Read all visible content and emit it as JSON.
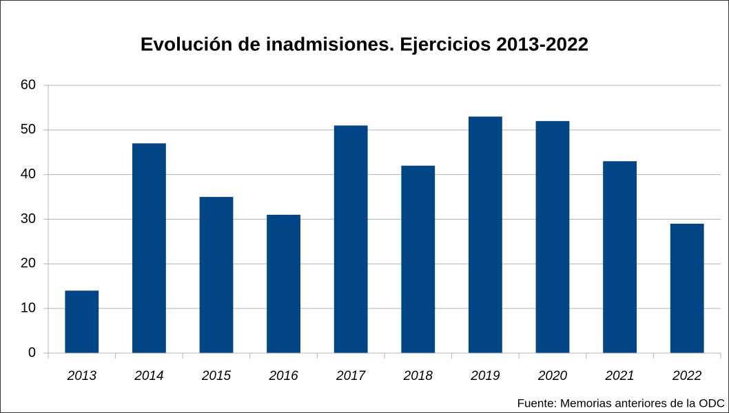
{
  "chart_data": {
    "type": "bar",
    "title": "Evolución de inadmisiones. Ejercicios 2013-2022",
    "source": "Fuente: Memorias anteriores de la ODC",
    "categories": [
      "2013",
      "2014",
      "2015",
      "2016",
      "2017",
      "2018",
      "2019",
      "2020",
      "2021",
      "2022"
    ],
    "values": [
      14,
      47,
      35,
      31,
      51,
      42,
      53,
      52,
      43,
      29
    ],
    "color": "#004586",
    "ylim": [
      0,
      60
    ],
    "yticks": [
      0,
      10,
      20,
      30,
      40,
      50,
      60
    ],
    "grid": true
  }
}
